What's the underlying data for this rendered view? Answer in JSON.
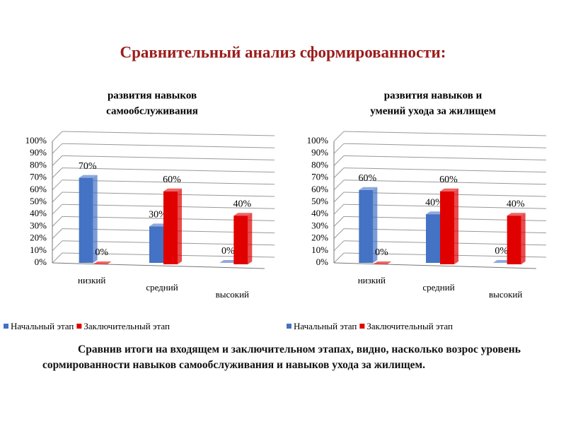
{
  "title": "Сравнительный анализ сформированности:",
  "caption": "Сравнив итоги на входящем и заключительном этапах, видно, насколько возрос уровень сормированности навыков самообслуживания и навыков ухода за жилищем.",
  "chart_data": [
    {
      "type": "bar",
      "title": [
        "развития навыков",
        "самообслуживания"
      ],
      "categories": [
        "низкий",
        "средний",
        "высокий"
      ],
      "series": [
        {
          "name": "Начальный этап",
          "color": "#4472c4",
          "values": [
            70,
            30,
            0
          ],
          "value_labels": [
            "70%",
            "30%",
            "0%"
          ]
        },
        {
          "name": "Заключительный этап",
          "color": "#e00000",
          "values": [
            0,
            60,
            40
          ],
          "value_labels": [
            "0%",
            "60%",
            "40%"
          ]
        }
      ],
      "ylim": [
        0,
        100
      ],
      "yticks": [
        {
          "value": 0,
          "label": "0%"
        },
        {
          "value": 10,
          "label": "10%"
        },
        {
          "value": 20,
          "label": "20%"
        },
        {
          "value": 30,
          "label": "30%"
        },
        {
          "value": 40,
          "label": "40%"
        },
        {
          "value": 50,
          "label": "50%"
        },
        {
          "value": 60,
          "label": "60%"
        },
        {
          "value": 70,
          "label": "70%"
        },
        {
          "value": 80,
          "label": "80%"
        },
        {
          "value": 90,
          "label": "90%"
        },
        {
          "value": 100,
          "label": "100%"
        }
      ],
      "grid": true,
      "legend": "bottom"
    },
    {
      "type": "bar",
      "title": [
        "развития навыков и",
        "умений ухода за жилищем"
      ],
      "categories": [
        "низкий",
        "средний",
        "высокий"
      ],
      "series": [
        {
          "name": "Начальный этап",
          "color": "#4472c4",
          "values": [
            60,
            40,
            0
          ],
          "value_labels": [
            "60%",
            "40%",
            "0%"
          ]
        },
        {
          "name": "Заключительный этап",
          "color": "#e00000",
          "values": [
            0,
            60,
            40
          ],
          "value_labels": [
            "0%",
            "60%",
            "40%"
          ]
        }
      ],
      "ylim": [
        0,
        100
      ],
      "yticks": [
        {
          "value": 0,
          "label": "0%"
        },
        {
          "value": 10,
          "label": "10%"
        },
        {
          "value": 20,
          "label": "20%"
        },
        {
          "value": 30,
          "label": "30%"
        },
        {
          "value": 40,
          "label": "40%"
        },
        {
          "value": 50,
          "label": "50%"
        },
        {
          "value": 60,
          "label": "60%"
        },
        {
          "value": 70,
          "label": "70%"
        },
        {
          "value": 80,
          "label": "80%"
        },
        {
          "value": 90,
          "label": "90%"
        },
        {
          "value": 100,
          "label": "100%"
        }
      ],
      "grid": true,
      "legend": "bottom"
    }
  ]
}
